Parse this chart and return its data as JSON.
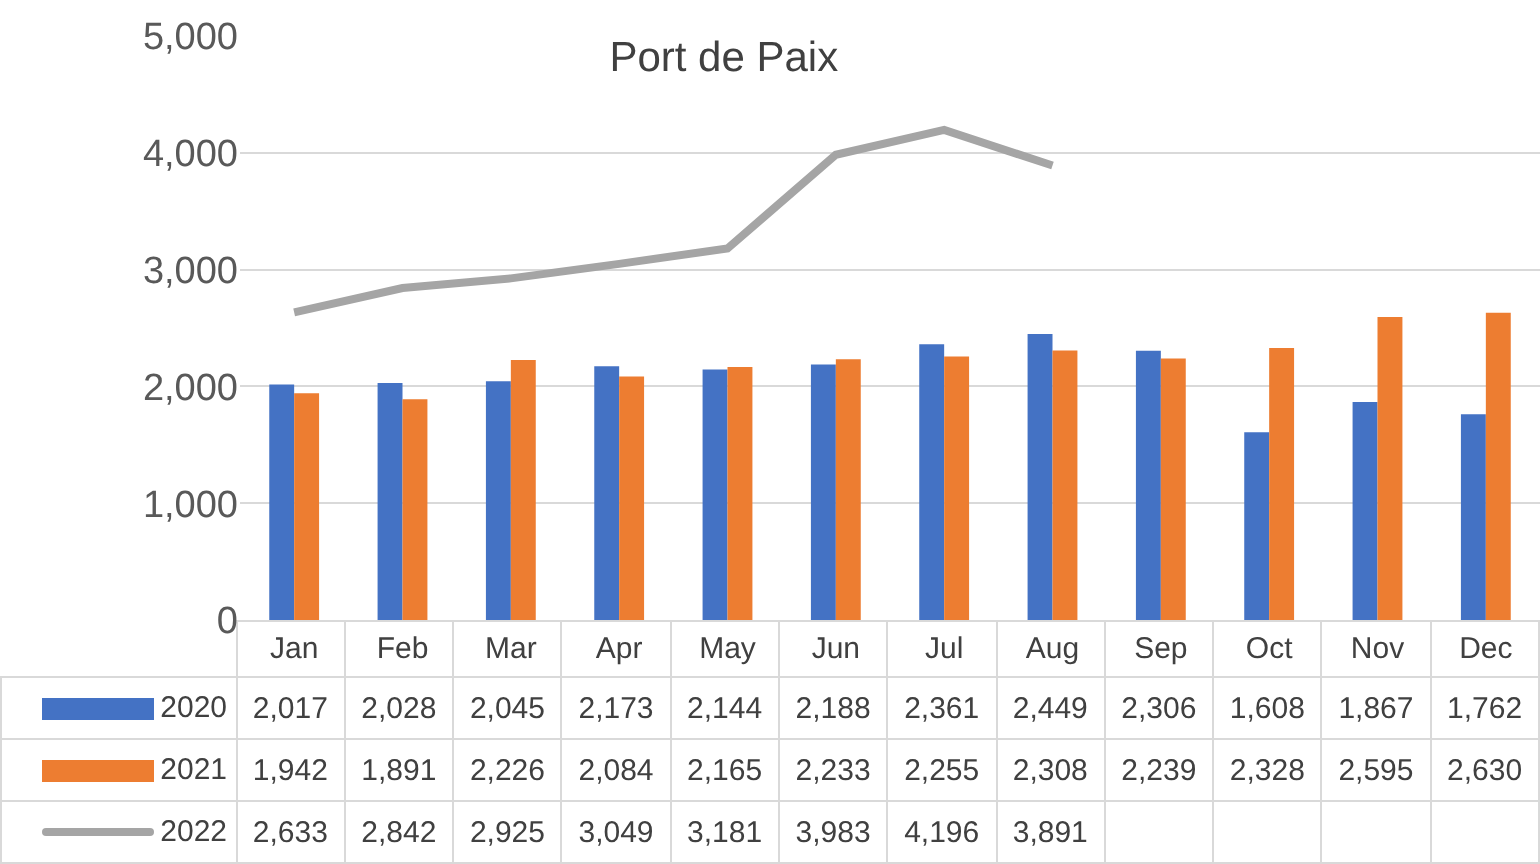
{
  "chart_data": {
    "type": "bar",
    "title": "Port de Paix",
    "categories": [
      "Jan",
      "Feb",
      "Mar",
      "Apr",
      "May",
      "Jun",
      "Jul",
      "Aug",
      "Sep",
      "Oct",
      "Nov",
      "Dec"
    ],
    "series": [
      {
        "name": "2020",
        "color": "#4472c4",
        "values": [
          2017,
          2028,
          2045,
          2173,
          2144,
          2188,
          2361,
          2449,
          2306,
          1608,
          1867,
          1762
        ],
        "value_labels": [
          "2,017",
          "2,028",
          "2,045",
          "2,173",
          "2,144",
          "2,188",
          "2,361",
          "2,449",
          "2,306",
          "1,608",
          "1,867",
          "1,762"
        ]
      },
      {
        "name": "2021",
        "color": "#ed7d31",
        "values": [
          1942,
          1891,
          2226,
          2084,
          2165,
          2233,
          2255,
          2308,
          2239,
          2328,
          2595,
          2630
        ],
        "value_labels": [
          "1,942",
          "1,891",
          "2,226",
          "2,084",
          "2,165",
          "2,233",
          "2,255",
          "2,308",
          "2,239",
          "2,328",
          "2,595",
          "2,630"
        ]
      },
      {
        "name": "2022",
        "type": "line",
        "color": "#a5a5a5",
        "values": [
          2633,
          2842,
          2925,
          3049,
          3181,
          3983,
          4196,
          3891,
          null,
          null,
          null,
          null
        ],
        "value_labels": [
          "2,633",
          "2,842",
          "2,925",
          "3,049",
          "3,181",
          "3,983",
          "4,196",
          "3,891",
          null,
          null,
          null,
          null
        ]
      }
    ],
    "ylim": [
      0,
      5000
    ],
    "yticks": [
      {
        "value": 0,
        "label": "0"
      },
      {
        "value": 1000,
        "label": "1,000"
      },
      {
        "value": 2000,
        "label": "2,000"
      },
      {
        "value": 3000,
        "label": "3,000"
      },
      {
        "value": 4000,
        "label": "4,000"
      },
      {
        "value": 5000,
        "label": "5,000"
      }
    ],
    "grid": "y",
    "legend": "bottom",
    "line_style": "solid",
    "marker": "none"
  }
}
